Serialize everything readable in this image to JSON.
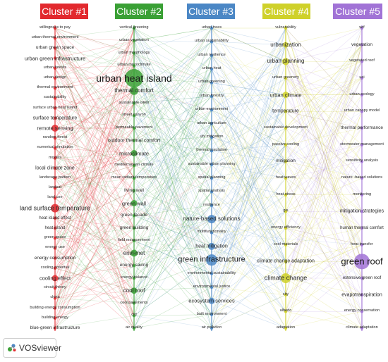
{
  "colors": {
    "cluster1": "#e2292e",
    "cluster2": "#3aa035",
    "cluster3": "#4b87c5",
    "cluster4": "#cfd12a",
    "cluster5": "#a173d6"
  },
  "logo": {
    "text": "VOSviewer",
    "icon": "vosviewer-logo-icon"
  },
  "clusters": [
    {
      "label": "Cluster #1",
      "terms": [
        "willingness to pay",
        "urban thermal environment",
        "urban green space",
        "urban green infrastructure",
        "urban forests",
        "urban design",
        "thermal environment",
        "sustainability",
        "surface urban heat island",
        "surface temperature",
        "remote sensing",
        "random forest",
        "numerical simulation",
        "models",
        "local climate zone",
        "landscape pattern",
        "landsat",
        "land use",
        "land surface temperature",
        "heat island effect",
        "heat island",
        "green space",
        "energy use",
        "energy consumption",
        "cooling potential",
        "cooling effect",
        "circuit theory",
        "china",
        "building energy consumption",
        "building energy",
        "blue-green infrastructure"
      ]
    },
    {
      "label": "Cluster #2",
      "terms": [
        "vertical greening",
        "urban vegetation",
        "urban morphology",
        "urban microclimate",
        "urban heat island",
        "thermal comfort",
        "sustainable cities",
        "street canyon",
        "permeable pavement",
        "outdoor thermal comfort",
        "microclimate",
        "mediterranean climate",
        "mean radiant temperature",
        "living wall",
        "green wall",
        "green facade",
        "green building",
        "field measurement",
        "envi-met",
        "energy saving",
        "energy balance",
        "cool roof",
        "cool pavements",
        "cfd",
        "air quality"
      ]
    },
    {
      "label": "Cluster #3",
      "terms": [
        "urban trees",
        "urban sustainability",
        "urban resilience",
        "urban heat",
        "urban greening",
        "urban forestry",
        "urban environment",
        "urban agriculture",
        "uhi mitigation",
        "thermal insulation",
        "sustainable urban planning",
        "spatial planning",
        "spatial analysis",
        "resilience",
        "nature-based solutions",
        "multifunctionality",
        "heat mitigation",
        "green infrastructure",
        "environmental sustainability",
        "environmental justice",
        "ecosystem services",
        "built environment",
        "air pollution"
      ]
    },
    {
      "label": "Cluster #4",
      "terms": [
        "vulnerability",
        "urbanization",
        "urban planning",
        "urban greenery",
        "urban climate",
        "temperature",
        "sustainable development",
        "passive cooling",
        "mitigation",
        "heat waves",
        "heat stress",
        "gis",
        "energy efficiency",
        "cool materials",
        "climate change adaptation",
        "climate change",
        "city",
        "albedo",
        "adaptation"
      ]
    },
    {
      "label": "Cluster #5",
      "terms": [
        "wrf",
        "vegetation",
        "vegetated roof",
        "uci",
        "urban ecology",
        "urban canopy model",
        "thermal performance",
        "stormwater management",
        "sensitivity analysis",
        "nature -based solutions",
        "monitoring",
        "mitigation strategies",
        "human thermal comfort",
        "heat transfer",
        "green roof",
        "extensive green roof",
        "evapotranspiration",
        "energy conservation",
        "climate adaptation"
      ]
    }
  ]
}
